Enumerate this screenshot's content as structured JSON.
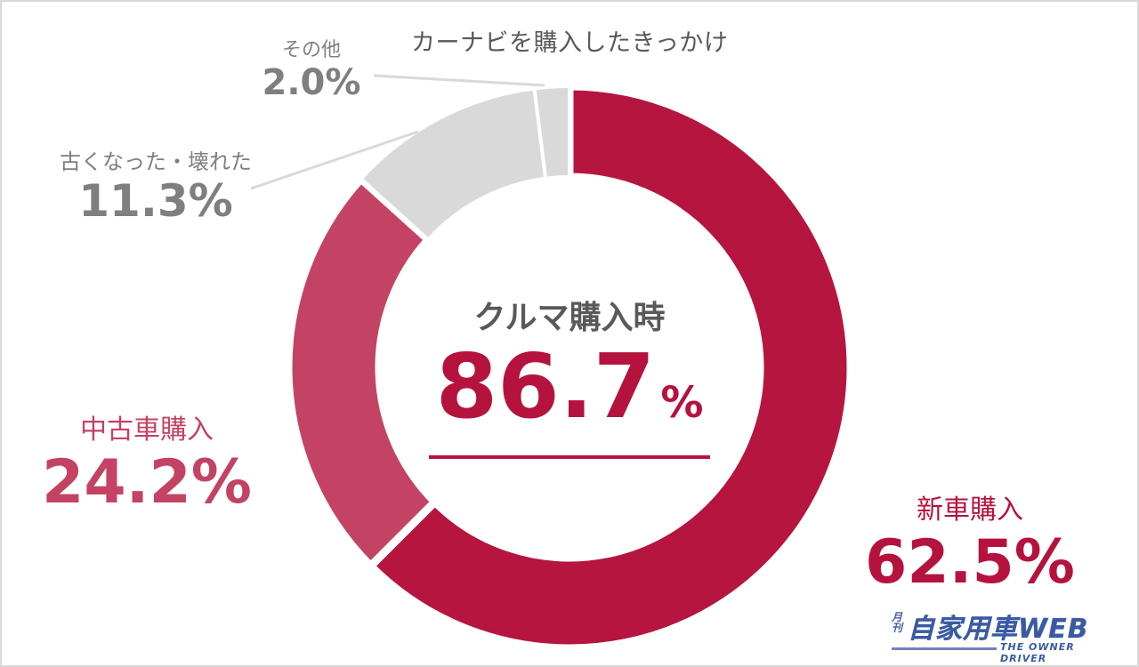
{
  "title": "カーナビを購入したきっかけ",
  "center": {
    "label": "クルマ購入時",
    "value": "86.7",
    "unit": "%"
  },
  "labels": {
    "new_car": {
      "name": "新車購入",
      "pct": "62.5%"
    },
    "used_car": {
      "name": "中古車購入",
      "pct": "24.2%"
    },
    "old_broken": {
      "name": "古くなった・壊れた",
      "pct": "11.3%"
    },
    "other": {
      "name": "その他",
      "pct": "2.0%"
    }
  },
  "logo": {
    "mark": "月刊",
    "main": "自家用車WEB",
    "tagline": "THE OWNER DRIVER"
  },
  "colors": {
    "new_car": "#b5153f",
    "used_car": "#c44364",
    "old_broken": "#d9d9d9",
    "other": "#d9d9d9",
    "leader": "#d9d9d9"
  },
  "chart_data": {
    "type": "pie",
    "variant": "donut",
    "title": "カーナビを購入したきっかけ",
    "categories": [
      "新車購入",
      "中古車購入",
      "古くなった・壊れた",
      "その他"
    ],
    "values": [
      62.5,
      24.2,
      11.3,
      2.0
    ],
    "unit": "%",
    "center_annotation": {
      "label": "クルマ購入時",
      "value": 86.7,
      "unit": "%"
    },
    "start_angle": "12 o'clock",
    "direction": "clockwise",
    "legend": "none (direct labels)"
  }
}
